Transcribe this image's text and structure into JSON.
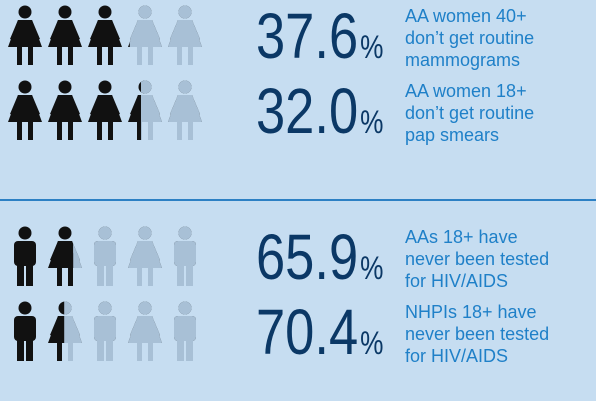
{
  "stats": [
    {
      "icon": "female",
      "value": 37.6,
      "value_label": "37.6",
      "unit": "%",
      "lines": [
        "AA women 40+",
        "don’t get routine",
        "mammograms"
      ]
    },
    {
      "icon": "female",
      "value": 32.0,
      "value_label": "32.0",
      "unit": "%",
      "lines": [
        "AA women 18+",
        "don’t get routine",
        "pap smears"
      ]
    },
    {
      "icon": "mixed",
      "value": 65.9,
      "value_label": "65.9",
      "unit": "%",
      "lines": [
        "AAs 18+ have",
        "never been tested",
        "for HIV/AIDS"
      ]
    },
    {
      "icon": "mixed",
      "value": 70.4,
      "value_label": "70.4",
      "unit": "%",
      "lines": [
        "NHPIs 18+ have",
        "never been tested",
        "for HIV/AIDS"
      ]
    }
  ]
}
